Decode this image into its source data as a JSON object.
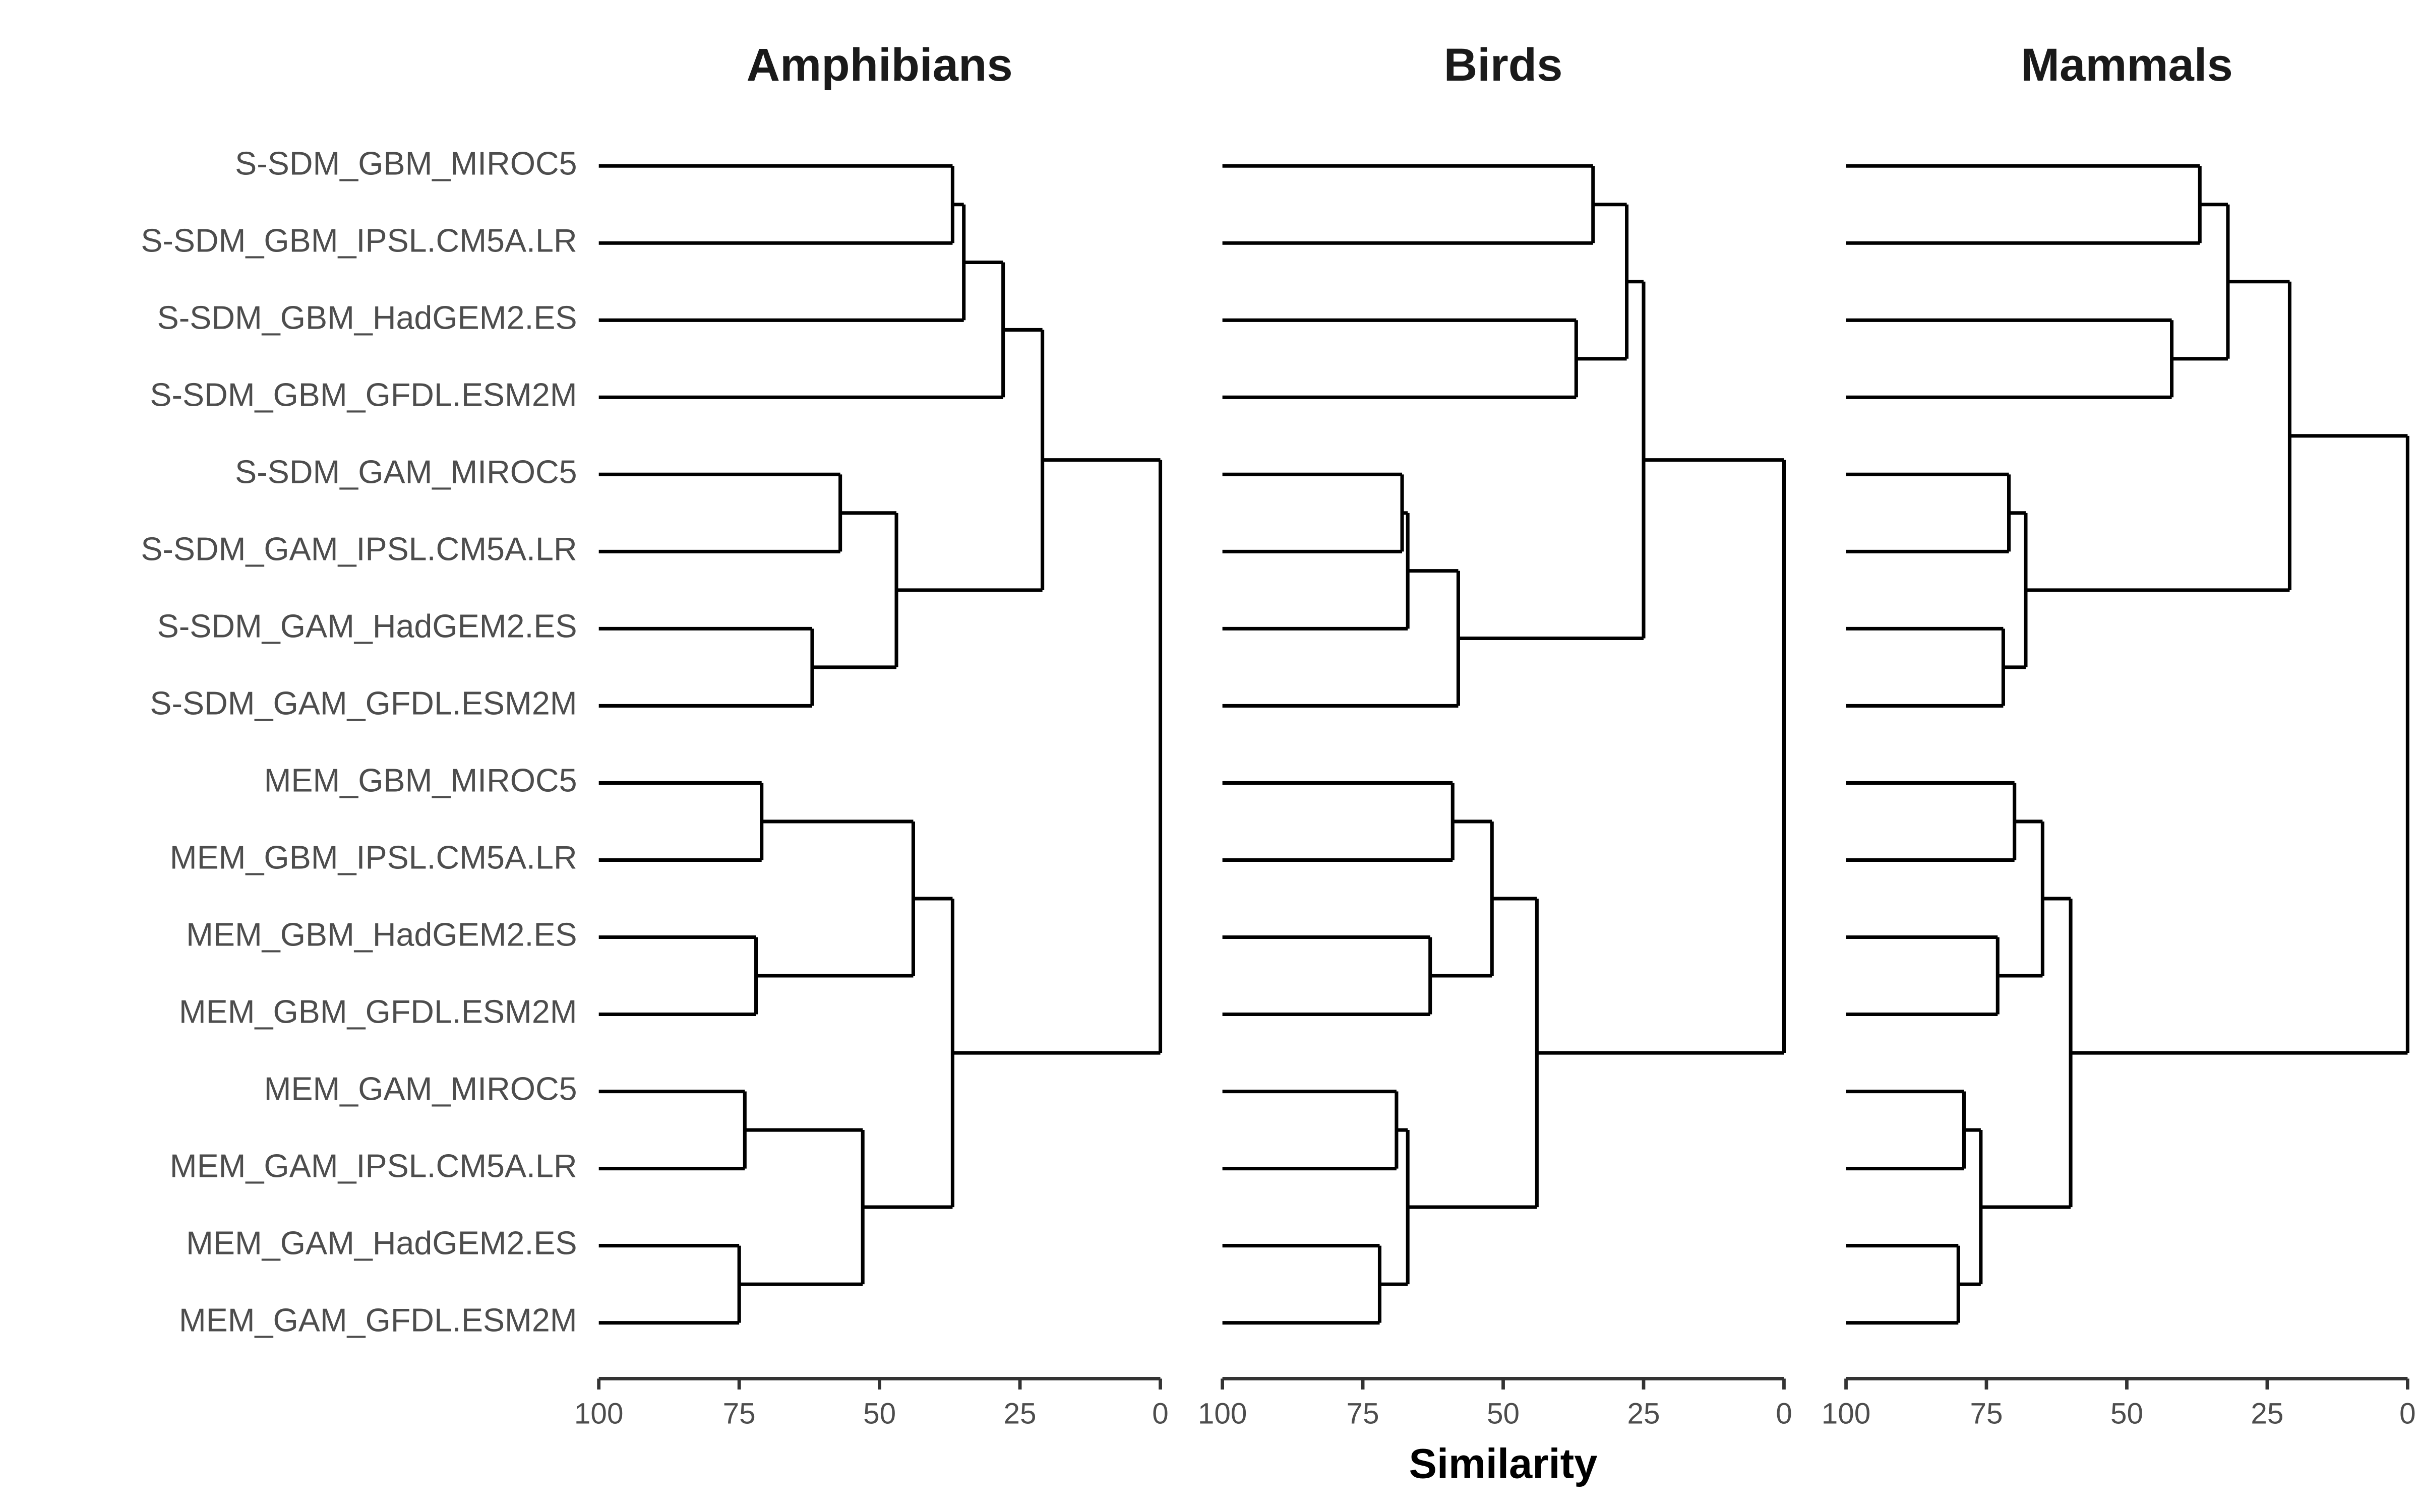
{
  "chart_data": {
    "type": "dendrogram",
    "x_label": "Similarity",
    "labels": [
      "S-SDM_GBM_MIROC5",
      "S-SDM_GBM_IPSL.CM5A.LR",
      "S-SDM_GBM_HadGEM2.ES",
      "S-SDM_GBM_GFDL.ESM2M",
      "S-SDM_GAM_MIROC5",
      "S-SDM_GAM_IPSL.CM5A.LR",
      "S-SDM_GAM_HadGEM2.ES",
      "S-SDM_GAM_GFDL.ESM2M",
      "MEM_GBM_MIROC5",
      "MEM_GBM_IPSL.CM5A.LR",
      "MEM_GBM_HadGEM2.ES",
      "MEM_GBM_GFDL.ESM2M",
      "MEM_GAM_MIROC5",
      "MEM_GAM_IPSL.CM5A.LR",
      "MEM_GAM_HadGEM2.ES",
      "MEM_GAM_GFDL.ESM2M"
    ],
    "xlim": [
      100,
      0
    ],
    "xticks": [
      100,
      75,
      50,
      25,
      0
    ],
    "color": "#000000",
    "panels": [
      {
        "title": "Amphibians",
        "tree": {
          "similarity": 0,
          "children": [
            {
              "similarity": 21,
              "children": [
                {
                  "similarity": 28,
                  "children": [
                    {
                      "similarity": 35,
                      "children": [
                        {
                          "similarity": 37,
                          "children": [
                            0,
                            1
                          ]
                        },
                        2
                      ]
                    },
                    3
                  ]
                },
                {
                  "similarity": 47,
                  "children": [
                    {
                      "similarity": 57,
                      "children": [
                        4,
                        5
                      ]
                    },
                    {
                      "similarity": 62,
                      "children": [
                        6,
                        7
                      ]
                    }
                  ]
                }
              ]
            },
            {
              "similarity": 37,
              "children": [
                {
                  "similarity": 44,
                  "children": [
                    {
                      "similarity": 71,
                      "children": [
                        8,
                        9
                      ]
                    },
                    {
                      "similarity": 72,
                      "children": [
                        10,
                        11
                      ]
                    }
                  ]
                },
                {
                  "similarity": 53,
                  "children": [
                    {
                      "similarity": 74,
                      "children": [
                        12,
                        13
                      ]
                    },
                    {
                      "similarity": 75,
                      "children": [
                        14,
                        15
                      ]
                    }
                  ]
                }
              ]
            }
          ]
        }
      },
      {
        "title": "Birds",
        "tree": {
          "similarity": 0,
          "children": [
            {
              "similarity": 25,
              "children": [
                {
                  "similarity": 28,
                  "children": [
                    {
                      "similarity": 34,
                      "children": [
                        0,
                        1
                      ]
                    },
                    {
                      "similarity": 37,
                      "children": [
                        2,
                        3
                      ]
                    }
                  ]
                },
                {
                  "similarity": 58,
                  "children": [
                    {
                      "similarity": 67,
                      "children": [
                        {
                          "similarity": 68,
                          "children": [
                            4,
                            5
                          ]
                        },
                        6
                      ]
                    },
                    7
                  ]
                }
              ]
            },
            {
              "similarity": 44,
              "children": [
                {
                  "similarity": 52,
                  "children": [
                    {
                      "similarity": 59,
                      "children": [
                        8,
                        9
                      ]
                    },
                    {
                      "similarity": 63,
                      "children": [
                        10,
                        11
                      ]
                    }
                  ]
                },
                {
                  "similarity": 67,
                  "children": [
                    {
                      "similarity": 69,
                      "children": [
                        12,
                        13
                      ]
                    },
                    {
                      "similarity": 72,
                      "children": [
                        14,
                        15
                      ]
                    }
                  ]
                }
              ]
            }
          ]
        }
      },
      {
        "title": "Mammals",
        "tree": {
          "similarity": 0,
          "children": [
            {
              "similarity": 21,
              "children": [
                {
                  "similarity": 32,
                  "children": [
                    {
                      "similarity": 37,
                      "children": [
                        0,
                        1
                      ]
                    },
                    {
                      "similarity": 42,
                      "children": [
                        2,
                        3
                      ]
                    }
                  ]
                },
                {
                  "similarity": 68,
                  "children": [
                    {
                      "similarity": 71,
                      "children": [
                        4,
                        5
                      ]
                    },
                    {
                      "similarity": 72,
                      "children": [
                        6,
                        7
                      ]
                    }
                  ]
                }
              ]
            },
            {
              "similarity": 60,
              "children": [
                {
                  "similarity": 65,
                  "children": [
                    {
                      "similarity": 70,
                      "children": [
                        8,
                        9
                      ]
                    },
                    {
                      "similarity": 73,
                      "children": [
                        10,
                        11
                      ]
                    }
                  ]
                },
                {
                  "similarity": 76,
                  "children": [
                    {
                      "similarity": 79,
                      "children": [
                        12,
                        13
                      ]
                    },
                    {
                      "similarity": 80,
                      "children": [
                        14,
                        15
                      ]
                    }
                  ]
                }
              ]
            }
          ]
        }
      }
    ]
  }
}
